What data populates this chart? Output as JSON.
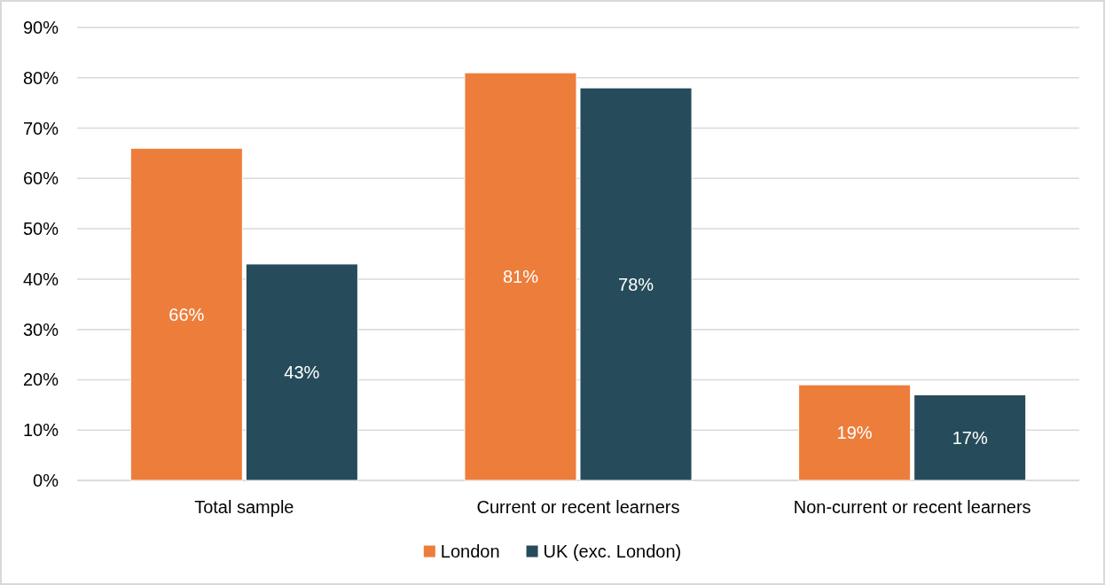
{
  "chart_data": {
    "type": "bar",
    "categories": [
      "Total sample",
      "Current or recent learners",
      "Non-current or recent learners"
    ],
    "series": [
      {
        "name": "London",
        "color": "#ed7d3b",
        "values": [
          66,
          81,
          19
        ],
        "value_labels": [
          "66%",
          "81%",
          "19%"
        ]
      },
      {
        "name": "UK (exc. London)",
        "color": "#264b5a",
        "values": [
          43,
          78,
          17
        ],
        "value_labels": [
          "43%",
          "78%",
          "17%"
        ]
      }
    ],
    "ylim": [
      0,
      90
    ],
    "yticks": [
      {
        "value": 0,
        "label": "0%"
      },
      {
        "value": 10,
        "label": "10%"
      },
      {
        "value": 20,
        "label": "20%"
      },
      {
        "value": 30,
        "label": "30%"
      },
      {
        "value": 40,
        "label": "40%"
      },
      {
        "value": 50,
        "label": "50%"
      },
      {
        "value": 60,
        "label": "60%"
      },
      {
        "value": 70,
        "label": "70%"
      },
      {
        "value": 80,
        "label": "80%"
      },
      {
        "value": 90,
        "label": "90%"
      }
    ],
    "grid": "y",
    "legend": "bottom"
  }
}
